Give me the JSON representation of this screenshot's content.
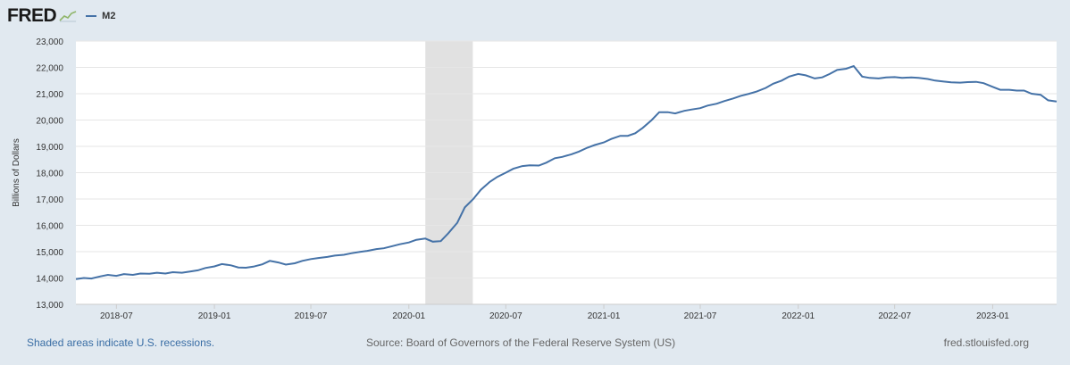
{
  "header": {
    "logo": "FRED",
    "legend_label": "M2"
  },
  "colors": {
    "background": "#e1e9f0",
    "plot_background": "#ffffff",
    "series": "#4572a7",
    "recession": "#e1e1e1",
    "grid": "#e6e6e6"
  },
  "chart_data": {
    "type": "line",
    "ylabel": "Billions of Dollars",
    "ylim": [
      13000,
      23000
    ],
    "yticks": [
      "13,000",
      "14,000",
      "15,000",
      "16,000",
      "17,000",
      "18,000",
      "19,000",
      "20,000",
      "21,000",
      "22,000",
      "23,000"
    ],
    "xlim": [
      "2018-04-16",
      "2023-05-01"
    ],
    "xticks": [
      "2018-07",
      "2019-01",
      "2019-07",
      "2020-01",
      "2020-07",
      "2021-01",
      "2021-07",
      "2022-01",
      "2022-07",
      "2023-01"
    ],
    "grid": true,
    "recessions": [
      {
        "start": "2020-02-01",
        "end": "2020-04-30"
      }
    ],
    "series": [
      {
        "name": "M2",
        "points": [
          [
            "2018-04-16",
            13960
          ],
          [
            "2018-05-01",
            14000
          ],
          [
            "2018-05-15",
            13980
          ],
          [
            "2018-06-01",
            14060
          ],
          [
            "2018-06-15",
            14120
          ],
          [
            "2018-07-01",
            14080
          ],
          [
            "2018-07-15",
            14150
          ],
          [
            "2018-08-01",
            14120
          ],
          [
            "2018-08-15",
            14170
          ],
          [
            "2018-09-01",
            14160
          ],
          [
            "2018-09-15",
            14200
          ],
          [
            "2018-10-01",
            14170
          ],
          [
            "2018-10-15",
            14220
          ],
          [
            "2018-11-01",
            14200
          ],
          [
            "2018-11-15",
            14240
          ],
          [
            "2018-12-01",
            14290
          ],
          [
            "2018-12-15",
            14380
          ],
          [
            "2019-01-01",
            14440
          ],
          [
            "2019-01-15",
            14530
          ],
          [
            "2019-02-01",
            14480
          ],
          [
            "2019-02-15",
            14400
          ],
          [
            "2019-03-01",
            14390
          ],
          [
            "2019-03-15",
            14430
          ],
          [
            "2019-04-01",
            14520
          ],
          [
            "2019-04-15",
            14650
          ],
          [
            "2019-05-01",
            14590
          ],
          [
            "2019-05-15",
            14510
          ],
          [
            "2019-06-01",
            14560
          ],
          [
            "2019-06-15",
            14650
          ],
          [
            "2019-07-01",
            14720
          ],
          [
            "2019-07-15",
            14760
          ],
          [
            "2019-08-01",
            14800
          ],
          [
            "2019-08-15",
            14850
          ],
          [
            "2019-09-01",
            14880
          ],
          [
            "2019-09-15",
            14940
          ],
          [
            "2019-10-01",
            14990
          ],
          [
            "2019-10-15",
            15030
          ],
          [
            "2019-11-01",
            15100
          ],
          [
            "2019-11-15",
            15130
          ],
          [
            "2019-12-01",
            15210
          ],
          [
            "2019-12-15",
            15280
          ],
          [
            "2020-01-01",
            15350
          ],
          [
            "2020-01-15",
            15450
          ],
          [
            "2020-02-01",
            15500
          ],
          [
            "2020-02-15",
            15380
          ],
          [
            "2020-03-01",
            15400
          ],
          [
            "2020-03-15",
            15700
          ],
          [
            "2020-04-01",
            16100
          ],
          [
            "2020-04-15",
            16680
          ],
          [
            "2020-05-01",
            17000
          ],
          [
            "2020-05-15",
            17350
          ],
          [
            "2020-06-01",
            17650
          ],
          [
            "2020-06-15",
            17840
          ],
          [
            "2020-07-01",
            18000
          ],
          [
            "2020-07-15",
            18150
          ],
          [
            "2020-08-01",
            18250
          ],
          [
            "2020-08-15",
            18280
          ],
          [
            "2020-09-01",
            18270
          ],
          [
            "2020-09-15",
            18380
          ],
          [
            "2020-10-01",
            18550
          ],
          [
            "2020-10-15",
            18600
          ],
          [
            "2020-11-01",
            18700
          ],
          [
            "2020-11-15",
            18800
          ],
          [
            "2020-12-01",
            18950
          ],
          [
            "2020-12-15",
            19050
          ],
          [
            "2021-01-01",
            19150
          ],
          [
            "2021-01-15",
            19280
          ],
          [
            "2021-02-01",
            19400
          ],
          [
            "2021-02-15",
            19400
          ],
          [
            "2021-03-01",
            19500
          ],
          [
            "2021-03-15",
            19700
          ],
          [
            "2021-04-01",
            20000
          ],
          [
            "2021-04-15",
            20300
          ],
          [
            "2021-05-01",
            20300
          ],
          [
            "2021-05-15",
            20250
          ],
          [
            "2021-06-01",
            20350
          ],
          [
            "2021-06-15",
            20400
          ],
          [
            "2021-07-01",
            20450
          ],
          [
            "2021-07-15",
            20550
          ],
          [
            "2021-08-01",
            20620
          ],
          [
            "2021-08-15",
            20720
          ],
          [
            "2021-09-01",
            20820
          ],
          [
            "2021-09-15",
            20920
          ],
          [
            "2021-10-01",
            21000
          ],
          [
            "2021-10-15",
            21080
          ],
          [
            "2021-11-01",
            21220
          ],
          [
            "2021-11-15",
            21380
          ],
          [
            "2021-12-01",
            21500
          ],
          [
            "2021-12-15",
            21650
          ],
          [
            "2022-01-01",
            21750
          ],
          [
            "2022-01-15",
            21700
          ],
          [
            "2022-02-01",
            21580
          ],
          [
            "2022-02-15",
            21620
          ],
          [
            "2022-03-01",
            21750
          ],
          [
            "2022-03-15",
            21900
          ],
          [
            "2022-04-01",
            21950
          ],
          [
            "2022-04-15",
            22050
          ],
          [
            "2022-05-01",
            21650
          ],
          [
            "2022-05-15",
            21600
          ],
          [
            "2022-06-01",
            21580
          ],
          [
            "2022-06-15",
            21620
          ],
          [
            "2022-07-01",
            21630
          ],
          [
            "2022-07-15",
            21600
          ],
          [
            "2022-08-01",
            21620
          ],
          [
            "2022-08-15",
            21600
          ],
          [
            "2022-09-01",
            21560
          ],
          [
            "2022-09-15",
            21500
          ],
          [
            "2022-10-01",
            21460
          ],
          [
            "2022-10-15",
            21430
          ],
          [
            "2022-11-01",
            21420
          ],
          [
            "2022-11-15",
            21440
          ],
          [
            "2022-12-01",
            21450
          ],
          [
            "2022-12-15",
            21400
          ],
          [
            "2023-01-01",
            21260
          ],
          [
            "2023-01-15",
            21150
          ],
          [
            "2023-02-01",
            21150
          ],
          [
            "2023-02-15",
            21120
          ],
          [
            "2023-03-01",
            21120
          ],
          [
            "2023-03-15",
            21000
          ],
          [
            "2023-04-01",
            20960
          ],
          [
            "2023-04-15",
            20750
          ],
          [
            "2023-05-01",
            20700
          ]
        ]
      }
    ]
  },
  "footer": {
    "recession_note": "Shaded areas indicate U.S. recessions.",
    "source": "Source: Board of Governors of the Federal Reserve System (US)",
    "site": "fred.stlouisfed.org"
  }
}
